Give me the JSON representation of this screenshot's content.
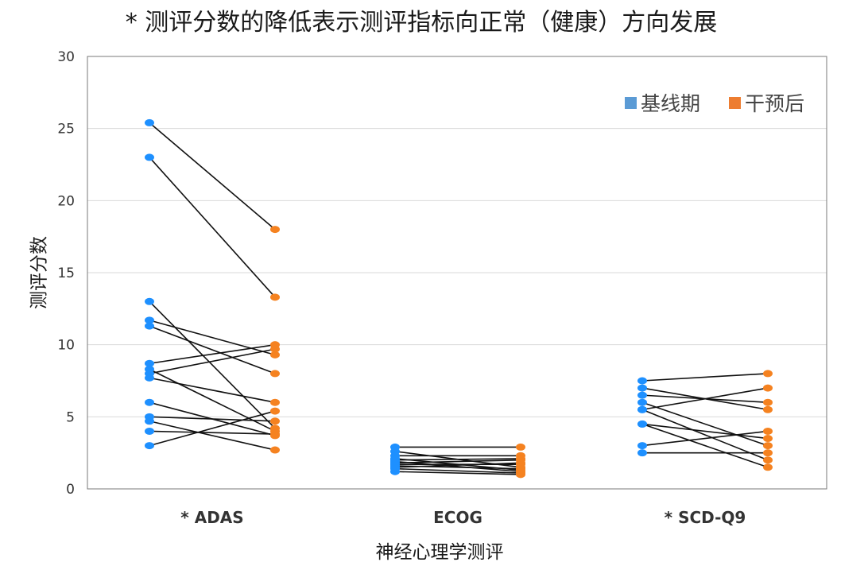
{
  "chart_data": {
    "type": "scatter",
    "title": "* 测评分数的降低表示测评指标向正常（健康）方向发展",
    "xlabel": "神经心理学测评",
    "ylabel": "测评分数",
    "ylim": [
      0,
      30
    ],
    "yticks": [
      0,
      5,
      10,
      15,
      20,
      25,
      30
    ],
    "grid": true,
    "legend_position": "top-right",
    "categories": [
      "* ADAS",
      "ECOG",
      "* SCD-Q9"
    ],
    "series": [
      {
        "name": "基线期",
        "color": "#1e90ff"
      },
      {
        "name": "干预后",
        "color": "#f58220"
      }
    ],
    "legend_colors": [
      "#5b9bd5",
      "#ed7d31"
    ],
    "pairs": [
      {
        "category": "* ADAS",
        "baseline": 25.4,
        "post": 18.0
      },
      {
        "category": "* ADAS",
        "baseline": 23.0,
        "post": 13.3
      },
      {
        "category": "* ADAS",
        "baseline": 13.0,
        "post": 4.2
      },
      {
        "category": "* ADAS",
        "baseline": 11.7,
        "post": 9.3
      },
      {
        "category": "* ADAS",
        "baseline": 11.3,
        "post": 8.0
      },
      {
        "category": "* ADAS",
        "baseline": 8.7,
        "post": 10.0
      },
      {
        "category": "* ADAS",
        "baseline": 8.3,
        "post": 4.0
      },
      {
        "category": "* ADAS",
        "baseline": 8.0,
        "post": 9.7
      },
      {
        "category": "* ADAS",
        "baseline": 7.7,
        "post": 6.0
      },
      {
        "category": "* ADAS",
        "baseline": 6.0,
        "post": 3.7
      },
      {
        "category": "* ADAS",
        "baseline": 5.0,
        "post": 4.7
      },
      {
        "category": "* ADAS",
        "baseline": 4.7,
        "post": 2.7
      },
      {
        "category": "* ADAS",
        "baseline": 4.0,
        "post": 3.8
      },
      {
        "category": "* ADAS",
        "baseline": 3.0,
        "post": 5.4
      },
      {
        "category": "ECOG",
        "baseline": 2.9,
        "post": 2.9
      },
      {
        "category": "ECOG",
        "baseline": 2.6,
        "post": 1.5
      },
      {
        "category": "ECOG",
        "baseline": 2.3,
        "post": 2.3
      },
      {
        "category": "ECOG",
        "baseline": 2.1,
        "post": 1.3
      },
      {
        "category": "ECOG",
        "baseline": 2.0,
        "post": 2.1
      },
      {
        "category": "ECOG",
        "baseline": 1.9,
        "post": 1.2
      },
      {
        "category": "ECOG",
        "baseline": 1.8,
        "post": 2.0
      },
      {
        "category": "ECOG",
        "baseline": 1.7,
        "post": 1.7
      },
      {
        "category": "ECOG",
        "baseline": 1.6,
        "post": 1.4
      },
      {
        "category": "ECOG",
        "baseline": 1.5,
        "post": 1.8
      },
      {
        "category": "ECOG",
        "baseline": 1.4,
        "post": 1.1
      },
      {
        "category": "ECOG",
        "baseline": 1.2,
        "post": 1.0
      },
      {
        "category": "* SCD-Q9",
        "baseline": 7.5,
        "post": 8.0
      },
      {
        "category": "* SCD-Q9",
        "baseline": 7.0,
        "post": 5.5
      },
      {
        "category": "* SCD-Q9",
        "baseline": 6.5,
        "post": 6.0
      },
      {
        "category": "* SCD-Q9",
        "baseline": 6.0,
        "post": 3.0
      },
      {
        "category": "* SCD-Q9",
        "baseline": 5.5,
        "post": 7.0
      },
      {
        "category": "* SCD-Q9",
        "baseline": 5.5,
        "post": 2.0
      },
      {
        "category": "* SCD-Q9",
        "baseline": 4.5,
        "post": 3.5
      },
      {
        "category": "* SCD-Q9",
        "baseline": 4.5,
        "post": 1.5
      },
      {
        "category": "* SCD-Q9",
        "baseline": 3.0,
        "post": 4.0
      },
      {
        "category": "* SCD-Q9",
        "baseline": 2.5,
        "post": 2.5
      }
    ]
  }
}
